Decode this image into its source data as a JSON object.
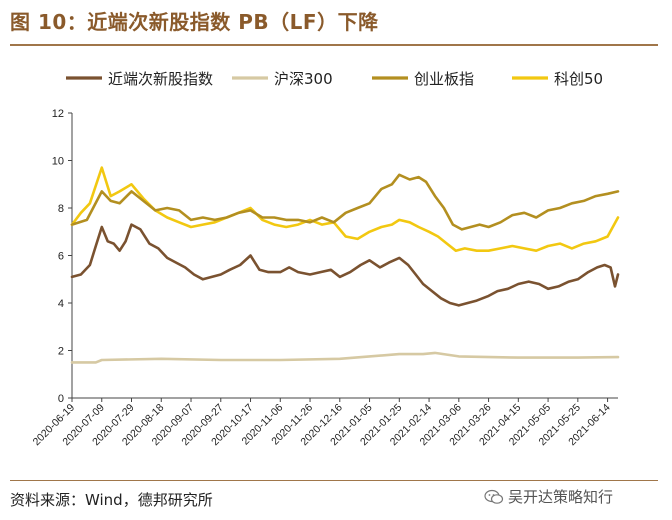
{
  "header": {
    "title": "图 10：近端次新股指数 PB（LF）下降"
  },
  "footer": {
    "source": "资料来源：Wind，德邦研究所",
    "watermark": "吴开达策略知行",
    "watermark_icon": "wechat-icon"
  },
  "chart_data": {
    "type": "line",
    "title": "图 10：近端次新股指数 PB（LF）下降",
    "xlabel": "",
    "ylabel": "",
    "ylim": [
      0,
      12
    ],
    "yticks": [
      0,
      2,
      4,
      6,
      8,
      10,
      12
    ],
    "x_tick_labels": [
      "2020-06-19",
      "2020-07-09",
      "2020-07-29",
      "2020-08-18",
      "2020-09-07",
      "2020-09-27",
      "2020-10-17",
      "2020-11-06",
      "2020-11-26",
      "2020-12-16",
      "2021-01-05",
      "2021-01-25",
      "2021-02-14",
      "2021-03-06",
      "2021-03-26",
      "2021-04-15",
      "2021-05-05",
      "2021-05-25",
      "2021-06-14"
    ],
    "x_range": [
      "2020-06-19",
      "2021-06-21"
    ],
    "legend_position": "top",
    "grid": false,
    "series": [
      {
        "name": "近端次新股指数",
        "color": "#7a5230",
        "x": [
          "2020-06-19",
          "2020-06-25",
          "2020-07-01",
          "2020-07-05",
          "2020-07-09",
          "2020-07-13",
          "2020-07-17",
          "2020-07-21",
          "2020-07-25",
          "2020-07-29",
          "2020-08-04",
          "2020-08-10",
          "2020-08-16",
          "2020-08-22",
          "2020-08-28",
          "2020-09-03",
          "2020-09-09",
          "2020-09-15",
          "2020-09-21",
          "2020-09-27",
          "2020-10-03",
          "2020-10-10",
          "2020-10-17",
          "2020-10-23",
          "2020-10-29",
          "2020-11-06",
          "2020-11-12",
          "2020-11-18",
          "2020-11-26",
          "2020-12-03",
          "2020-12-10",
          "2020-12-16",
          "2020-12-23",
          "2020-12-30",
          "2021-01-05",
          "2021-01-12",
          "2021-01-18",
          "2021-01-25",
          "2021-01-31",
          "2021-02-05",
          "2021-02-10",
          "2021-02-16",
          "2021-02-22",
          "2021-02-28",
          "2021-03-06",
          "2021-03-12",
          "2021-03-18",
          "2021-03-26",
          "2021-04-01",
          "2021-04-08",
          "2021-04-15",
          "2021-04-22",
          "2021-04-29",
          "2021-05-05",
          "2021-05-12",
          "2021-05-19",
          "2021-05-25",
          "2021-06-01",
          "2021-06-07",
          "2021-06-12",
          "2021-06-16",
          "2021-06-19",
          "2021-06-21"
        ],
        "y": [
          5.1,
          5.2,
          5.6,
          6.4,
          7.2,
          6.6,
          6.5,
          6.2,
          6.6,
          7.3,
          7.1,
          6.5,
          6.3,
          5.9,
          5.7,
          5.5,
          5.2,
          5.0,
          5.1,
          5.2,
          5.4,
          5.6,
          6.0,
          5.4,
          5.3,
          5.3,
          5.5,
          5.3,
          5.2,
          5.3,
          5.4,
          5.1,
          5.3,
          5.6,
          5.8,
          5.5,
          5.7,
          5.9,
          5.6,
          5.2,
          4.8,
          4.5,
          4.2,
          4.0,
          3.9,
          4.0,
          4.1,
          4.3,
          4.5,
          4.6,
          4.8,
          4.9,
          4.8,
          4.6,
          4.7,
          4.9,
          5.0,
          5.3,
          5.5,
          5.6,
          5.5,
          4.7,
          5.2
        ]
      },
      {
        "name": "沪深300",
        "color": "#d6c9a3",
        "x": [
          "2020-06-19",
          "2020-07-05",
          "2020-07-09",
          "2020-08-18",
          "2020-09-27",
          "2020-11-06",
          "2020-12-16",
          "2021-01-05",
          "2021-01-25",
          "2021-02-10",
          "2021-02-18",
          "2021-03-06",
          "2021-04-15",
          "2021-05-25",
          "2021-06-21"
        ],
        "y": [
          1.5,
          1.5,
          1.6,
          1.65,
          1.6,
          1.6,
          1.65,
          1.75,
          1.85,
          1.85,
          1.9,
          1.75,
          1.7,
          1.7,
          1.72
        ]
      },
      {
        "name": "创业板指",
        "color": "#b38f20",
        "x": [
          "2020-06-19",
          "2020-06-29",
          "2020-07-09",
          "2020-07-15",
          "2020-07-21",
          "2020-07-29",
          "2020-08-06",
          "2020-08-14",
          "2020-08-22",
          "2020-08-30",
          "2020-09-07",
          "2020-09-15",
          "2020-09-23",
          "2020-10-01",
          "2020-10-09",
          "2020-10-17",
          "2020-10-25",
          "2020-11-02",
          "2020-11-10",
          "2020-11-18",
          "2020-11-26",
          "2020-12-04",
          "2020-12-12",
          "2020-12-20",
          "2020-12-28",
          "2021-01-05",
          "2021-01-13",
          "2021-01-20",
          "2021-01-25",
          "2021-02-01",
          "2021-02-07",
          "2021-02-12",
          "2021-02-18",
          "2021-02-24",
          "2021-03-02",
          "2021-03-08",
          "2021-03-14",
          "2021-03-20",
          "2021-03-26",
          "2021-04-03",
          "2021-04-11",
          "2021-04-19",
          "2021-04-27",
          "2021-05-05",
          "2021-05-13",
          "2021-05-21",
          "2021-05-29",
          "2021-06-06",
          "2021-06-14",
          "2021-06-21"
        ],
        "y": [
          7.3,
          7.5,
          8.7,
          8.3,
          8.2,
          8.7,
          8.3,
          7.9,
          8.0,
          7.9,
          7.5,
          7.6,
          7.5,
          7.6,
          7.8,
          7.9,
          7.6,
          7.6,
          7.5,
          7.5,
          7.4,
          7.6,
          7.4,
          7.8,
          8.0,
          8.2,
          8.8,
          9.0,
          9.4,
          9.2,
          9.3,
          9.1,
          8.5,
          8.0,
          7.3,
          7.1,
          7.2,
          7.3,
          7.2,
          7.4,
          7.7,
          7.8,
          7.6,
          7.9,
          8.0,
          8.2,
          8.3,
          8.5,
          8.6,
          8.7
        ]
      },
      {
        "name": "科创50",
        "color": "#f2c811",
        "x": [
          "2020-06-19",
          "2020-06-25",
          "2020-07-01",
          "2020-07-09",
          "2020-07-15",
          "2020-07-21",
          "2020-07-29",
          "2020-08-06",
          "2020-08-14",
          "2020-08-22",
          "2020-08-30",
          "2020-09-07",
          "2020-09-15",
          "2020-09-23",
          "2020-10-01",
          "2020-10-09",
          "2020-10-17",
          "2020-10-25",
          "2020-11-02",
          "2020-11-10",
          "2020-11-18",
          "2020-11-26",
          "2020-12-04",
          "2020-12-12",
          "2020-12-20",
          "2020-12-28",
          "2021-01-05",
          "2021-01-13",
          "2021-01-20",
          "2021-01-25",
          "2021-02-01",
          "2021-02-07",
          "2021-02-14",
          "2021-02-20",
          "2021-02-26",
          "2021-03-04",
          "2021-03-10",
          "2021-03-18",
          "2021-03-26",
          "2021-04-03",
          "2021-04-11",
          "2021-04-19",
          "2021-04-27",
          "2021-05-05",
          "2021-05-13",
          "2021-05-21",
          "2021-05-29",
          "2021-06-06",
          "2021-06-14",
          "2021-06-21"
        ],
        "y": [
          7.3,
          7.8,
          8.2,
          9.7,
          8.5,
          8.7,
          9.0,
          8.4,
          7.9,
          7.6,
          7.4,
          7.2,
          7.3,
          7.4,
          7.6,
          7.8,
          8.0,
          7.5,
          7.3,
          7.2,
          7.3,
          7.5,
          7.3,
          7.4,
          6.8,
          6.7,
          7.0,
          7.2,
          7.3,
          7.5,
          7.4,
          7.2,
          7.0,
          6.8,
          6.5,
          6.2,
          6.3,
          6.2,
          6.2,
          6.3,
          6.4,
          6.3,
          6.2,
          6.4,
          6.5,
          6.3,
          6.5,
          6.6,
          6.8,
          7.6
        ]
      }
    ]
  }
}
